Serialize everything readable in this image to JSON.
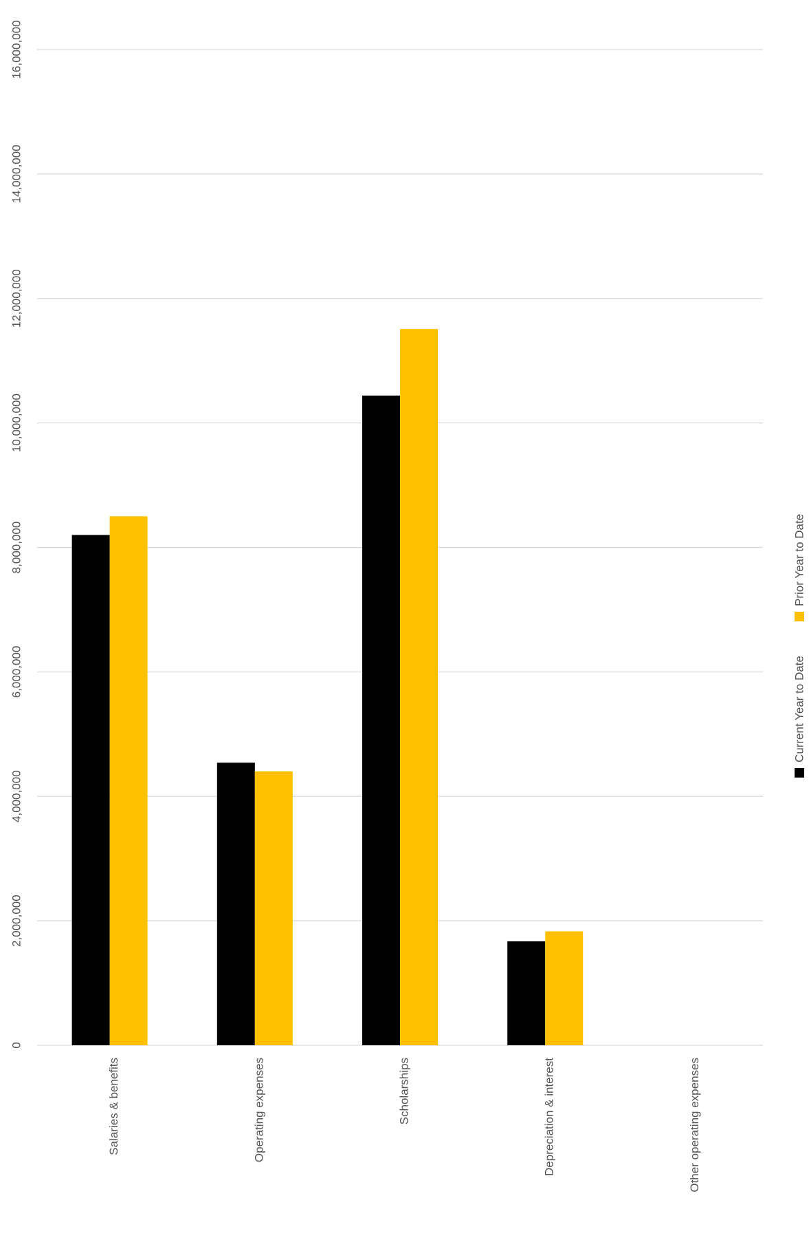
{
  "chart_data": {
    "type": "bar",
    "orientation": "rotated-90",
    "title": "",
    "xlabel": "",
    "ylabel": "",
    "categories": [
      "Salaries & benefits",
      "Operating expenses",
      "Scholarships",
      "Depreciation & interest",
      "Other operating expenses"
    ],
    "series": [
      {
        "name": "Current Year to Date",
        "color": "#000000",
        "values": [
          8200000,
          4540000,
          10440000,
          1670000,
          0
        ]
      },
      {
        "name": "Prior Year to Date",
        "color": "#ffc000",
        "values": [
          8500000,
          4400000,
          11510000,
          1830000,
          0
        ]
      }
    ],
    "ylim": [
      0,
      16000000
    ],
    "yticks": [
      0,
      2000000,
      4000000,
      6000000,
      8000000,
      10000000,
      12000000,
      14000000,
      16000000
    ],
    "ytick_labels": [
      "0",
      "2,000,000",
      "4,000,000",
      "6,000,000",
      "8,000,000",
      "10,000,000",
      "12,000,000",
      "14,000,000",
      "16,000,000"
    ],
    "grid": true,
    "legend_position": "right"
  }
}
